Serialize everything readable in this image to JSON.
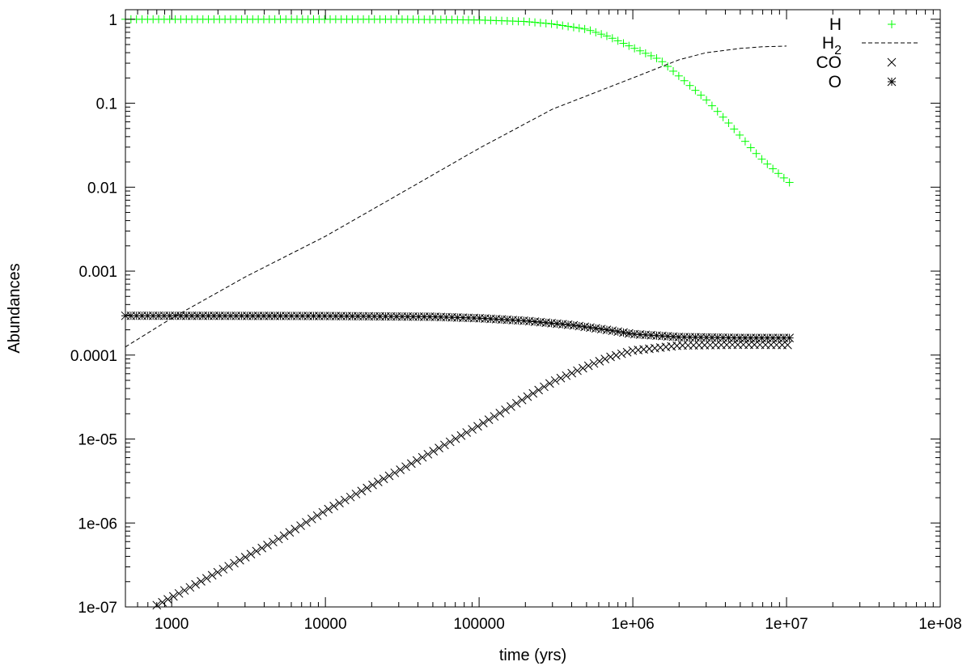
{
  "chart_data": {
    "type": "scatter",
    "xlabel": "time (yrs)",
    "ylabel": "Abundances",
    "xscale": "log",
    "yscale": "log",
    "xlim": [
      500,
      100000000
    ],
    "ylim": [
      1e-07,
      1.3
    ],
    "xticks": [
      {
        "value": 1000,
        "label": "1000"
      },
      {
        "value": 10000,
        "label": "10000"
      },
      {
        "value": 100000,
        "label": "100000"
      },
      {
        "value": 1000000,
        "label": "1e+06"
      },
      {
        "value": 10000000,
        "label": "1e+07"
      },
      {
        "value": 100000000,
        "label": "1e+08"
      }
    ],
    "yticks": [
      {
        "value": 1,
        "label": "1"
      },
      {
        "value": 0.1,
        "label": "0.1"
      },
      {
        "value": 0.01,
        "label": "0.01"
      },
      {
        "value": 0.001,
        "label": "0.001"
      },
      {
        "value": 0.0001,
        "label": "0.0001"
      },
      {
        "value": 1e-05,
        "label": "1e-05"
      },
      {
        "value": 1e-06,
        "label": "1e-06"
      },
      {
        "value": 1e-07,
        "label": "1e-07"
      }
    ],
    "grid": false,
    "legend": "top-right",
    "series": [
      {
        "name": "H",
        "name_sub": "",
        "style": "plus-markers",
        "color": "#00ff00",
        "points": [
          [
            500,
            1.0
          ],
          [
            1000,
            1.0
          ],
          [
            3000,
            1.0
          ],
          [
            10000,
            1.0
          ],
          [
            30000,
            1.0
          ],
          [
            60000,
            0.99
          ],
          [
            100000,
            0.98
          ],
          [
            200000,
            0.94
          ],
          [
            300000,
            0.88
          ],
          [
            500000,
            0.76
          ],
          [
            700000,
            0.62
          ],
          [
            1000000,
            0.46
          ],
          [
            1500000,
            0.33
          ],
          [
            2000000,
            0.21
          ],
          [
            3000000,
            0.11
          ],
          [
            4000000,
            0.064
          ],
          [
            5000000,
            0.041
          ],
          [
            6000000,
            0.028
          ],
          [
            7000000,
            0.021
          ],
          [
            8500000,
            0.0155
          ],
          [
            10500000,
            0.0113
          ]
        ]
      },
      {
        "name": "H",
        "name_sub": "2",
        "style": "dashed-line",
        "color": "#000000",
        "points": [
          [
            500,
            0.000125
          ],
          [
            1000,
            0.000275
          ],
          [
            3000,
            0.00085
          ],
          [
            10000,
            0.0026
          ],
          [
            30000,
            0.0082
          ],
          [
            100000,
            0.029
          ],
          [
            300000,
            0.085
          ],
          [
            1000000,
            0.2
          ],
          [
            2000000,
            0.33
          ],
          [
            3000000,
            0.4
          ],
          [
            5000000,
            0.45
          ],
          [
            7000000,
            0.47
          ],
          [
            10000000,
            0.48
          ]
        ]
      },
      {
        "name": "CO",
        "name_sub": "",
        "style": "x-markers",
        "color": "#000000",
        "points": [
          [
            800,
            1.05e-07
          ],
          [
            1000,
            1.3e-07
          ],
          [
            2000,
            2.6e-07
          ],
          [
            3000,
            3.9e-07
          ],
          [
            5000,
            6.5e-07
          ],
          [
            10000,
            1.4e-06
          ],
          [
            30000,
            4.2e-06
          ],
          [
            100000,
            1.45e-05
          ],
          [
            300000,
            4.8e-05
          ],
          [
            500000,
            7.3e-05
          ],
          [
            700000,
            9.4e-05
          ],
          [
            1000000,
            0.000113
          ],
          [
            2000000,
            0.00013
          ],
          [
            5000000,
            0.000133
          ],
          [
            10500000,
            0.000132
          ]
        ]
      },
      {
        "name": "O",
        "name_sub": "",
        "style": "star-markers",
        "color": "#000000",
        "points": [
          [
            500,
            0.000294
          ],
          [
            1000,
            0.000294
          ],
          [
            10000,
            0.000292
          ],
          [
            50000,
            0.000286
          ],
          [
            100000,
            0.000275
          ],
          [
            200000,
            0.000256
          ],
          [
            400000,
            0.000228
          ],
          [
            700000,
            0.000198
          ],
          [
            1000000,
            0.000178
          ],
          [
            2000000,
            0.000164
          ],
          [
            5000000,
            0.00016
          ],
          [
            10500000,
            0.00016
          ]
        ]
      }
    ]
  }
}
